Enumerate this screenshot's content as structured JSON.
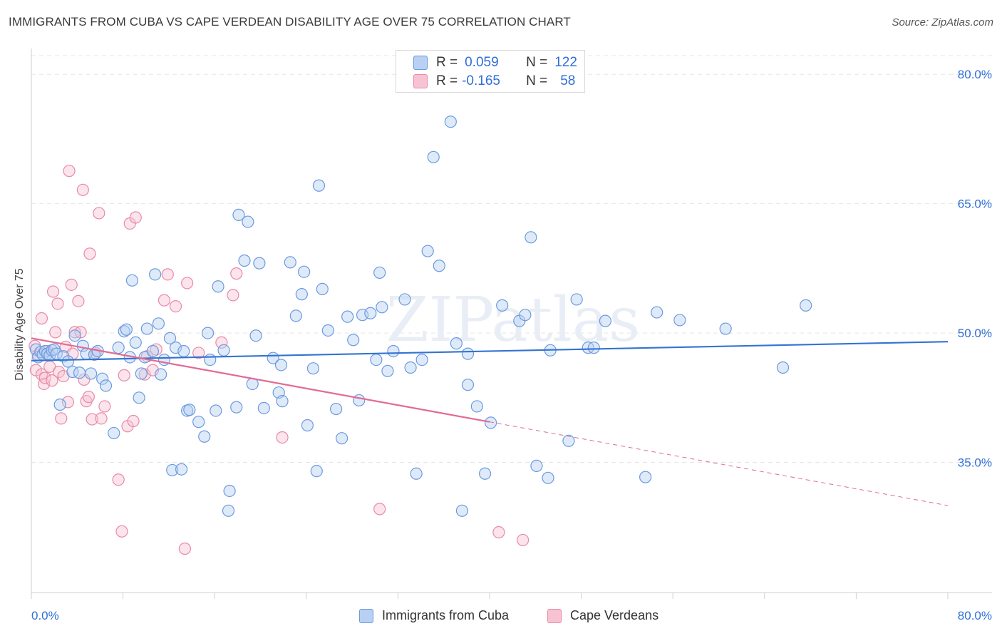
{
  "title": "IMMIGRANTS FROM CUBA VS CAPE VERDEAN DISABILITY AGE OVER 75 CORRELATION CHART",
  "source": "Source: ZipAtlas.com",
  "watermark": "ZIPatlas",
  "legend_top": {
    "rows": [
      {
        "r_label": "R =",
        "r_value": "0.059",
        "n_label": "N =",
        "n_value": "122"
      },
      {
        "r_label": "R =",
        "r_value": "-0.165",
        "n_label": "N =",
        "n_value": "58"
      }
    ]
  },
  "legend_bottom": [
    "Immigrants from Cuba",
    "Cape Verdeans"
  ],
  "colors": {
    "blue_fill": "#b8d0f2",
    "blue_stroke": "#6b9ae0",
    "blue_line": "#3374d1",
    "pink_fill": "#f7c3d3",
    "pink_stroke": "#e88aa8",
    "pink_line": "#e36a93",
    "axis_text": "#2f6fd6",
    "grid": "#e5e5e5"
  },
  "chart_data": {
    "type": "scatter",
    "title": "IMMIGRANTS FROM CUBA VS CAPE VERDEAN DISABILITY AGE OVER 75 CORRELATION CHART",
    "xlabel": "",
    "ylabel": "Disability Age Over 75",
    "xlim": [
      0,
      80
    ],
    "ylim": [
      20,
      82
    ],
    "x_tick_labels": [
      "0.0%",
      "80.0%"
    ],
    "y_ticks": [
      35,
      50,
      65,
      80
    ],
    "y_tick_labels": [
      "35.0%",
      "50.0%",
      "65.0%",
      "80.0%"
    ],
    "grid": true,
    "series": [
      {
        "name": "Immigrants from Cuba",
        "color": "#6b9ae0",
        "R": 0.059,
        "N": 122,
        "trend": {
          "x": [
            0,
            80
          ],
          "y": [
            46.8,
            49.0
          ]
        },
        "points": [
          [
            0.4,
            48.1
          ],
          [
            0.6,
            47.2
          ],
          [
            0.8,
            47.8
          ],
          [
            1.0,
            47.5
          ],
          [
            1.2,
            47.9
          ],
          [
            1.4,
            47.6
          ],
          [
            1.6,
            47.4
          ],
          [
            1.8,
            48.0
          ],
          [
            2.0,
            48.1
          ],
          [
            2.2,
            47.6
          ],
          [
            2.5,
            41.7
          ],
          [
            2.8,
            47.3
          ],
          [
            3.2,
            46.7
          ],
          [
            3.6,
            45.5
          ],
          [
            3.8,
            49.7
          ],
          [
            4.2,
            45.4
          ],
          [
            4.5,
            48.5
          ],
          [
            4.8,
            47.6
          ],
          [
            5.2,
            45.3
          ],
          [
            5.5,
            47.5
          ],
          [
            5.8,
            47.9
          ],
          [
            6.2,
            44.7
          ],
          [
            6.5,
            43.9
          ],
          [
            7.2,
            38.4
          ],
          [
            7.6,
            48.3
          ],
          [
            8.1,
            50.2
          ],
          [
            8.3,
            50.4
          ],
          [
            8.6,
            47.2
          ],
          [
            8.8,
            56.1
          ],
          [
            9.1,
            48.9
          ],
          [
            9.4,
            42.5
          ],
          [
            9.6,
            45.3
          ],
          [
            9.9,
            47.2
          ],
          [
            10.1,
            50.5
          ],
          [
            10.6,
            47.9
          ],
          [
            10.8,
            56.8
          ],
          [
            11.1,
            51.1
          ],
          [
            11.3,
            45.2
          ],
          [
            11.6,
            46.9
          ],
          [
            12.1,
            49.4
          ],
          [
            12.3,
            34.1
          ],
          [
            12.6,
            48.3
          ],
          [
            13.1,
            34.2
          ],
          [
            13.3,
            47.9
          ],
          [
            13.6,
            41.0
          ],
          [
            13.8,
            41.1
          ],
          [
            14.6,
            39.7
          ],
          [
            15.1,
            38.0
          ],
          [
            15.4,
            50.0
          ],
          [
            15.6,
            46.9
          ],
          [
            16.1,
            41.0
          ],
          [
            16.3,
            55.4
          ],
          [
            16.8,
            48.0
          ],
          [
            17.3,
            31.7
          ],
          [
            17.2,
            29.4
          ],
          [
            17.9,
            41.4
          ],
          [
            18.1,
            63.7
          ],
          [
            18.6,
            58.4
          ],
          [
            18.9,
            62.9
          ],
          [
            19.3,
            44.1
          ],
          [
            19.6,
            49.7
          ],
          [
            19.9,
            58.1
          ],
          [
            20.3,
            41.3
          ],
          [
            21.1,
            47.1
          ],
          [
            21.6,
            43.1
          ],
          [
            21.8,
            46.3
          ],
          [
            21.9,
            42.1
          ],
          [
            22.6,
            58.2
          ],
          [
            23.1,
            52.0
          ],
          [
            23.6,
            54.5
          ],
          [
            23.8,
            57.1
          ],
          [
            24.1,
            39.3
          ],
          [
            24.6,
            45.9
          ],
          [
            24.9,
            34.0
          ],
          [
            25.1,
            67.1
          ],
          [
            25.4,
            55.1
          ],
          [
            25.9,
            50.3
          ],
          [
            26.6,
            41.2
          ],
          [
            27.1,
            37.8
          ],
          [
            27.6,
            51.9
          ],
          [
            28.1,
            49.2
          ],
          [
            28.6,
            42.2
          ],
          [
            28.9,
            52.1
          ],
          [
            29.6,
            52.3
          ],
          [
            30.1,
            46.9
          ],
          [
            30.6,
            53.0
          ],
          [
            30.4,
            57.0
          ],
          [
            31.1,
            45.6
          ],
          [
            31.6,
            47.9
          ],
          [
            32.6,
            53.9
          ],
          [
            33.1,
            46.0
          ],
          [
            33.6,
            33.7
          ],
          [
            34.1,
            46.9
          ],
          [
            34.6,
            59.5
          ],
          [
            35.1,
            70.4
          ],
          [
            35.6,
            57.8
          ],
          [
            36.6,
            74.5
          ],
          [
            37.1,
            48.8
          ],
          [
            37.6,
            29.4
          ],
          [
            38.1,
            47.6
          ],
          [
            38.1,
            44.0
          ],
          [
            38.9,
            41.5
          ],
          [
            39.6,
            33.7
          ],
          [
            40.1,
            39.6
          ],
          [
            41.1,
            53.2
          ],
          [
            42.6,
            51.4
          ],
          [
            43.1,
            52.1
          ],
          [
            43.6,
            61.1
          ],
          [
            44.1,
            34.6
          ],
          [
            45.1,
            33.2
          ],
          [
            45.3,
            48.0
          ],
          [
            46.9,
            37.5
          ],
          [
            47.6,
            53.9
          ],
          [
            48.6,
            48.3
          ],
          [
            49.1,
            48.3
          ],
          [
            50.1,
            51.4
          ],
          [
            53.6,
            33.3
          ],
          [
            54.6,
            52.4
          ],
          [
            56.6,
            51.5
          ],
          [
            60.6,
            50.5
          ],
          [
            65.6,
            46.0
          ],
          [
            67.6,
            53.2
          ]
        ]
      },
      {
        "name": "Cape Verdeans",
        "color": "#e88aa8",
        "R": -0.165,
        "N": 58,
        "trend": {
          "x": [
            0,
            40
          ],
          "y": [
            49.4,
            39.7
          ]
        },
        "trend_dashed": {
          "x": [
            40,
            80
          ],
          "y": [
            39.7,
            30.0
          ]
        },
        "points": [
          [
            0.3,
            48.5
          ],
          [
            0.4,
            45.7
          ],
          [
            0.6,
            47.5
          ],
          [
            0.9,
            45.2
          ],
          [
            0.9,
            51.7
          ],
          [
            1.1,
            44.1
          ],
          [
            1.2,
            44.8
          ],
          [
            1.4,
            47.9
          ],
          [
            1.6,
            46.1
          ],
          [
            1.8,
            44.5
          ],
          [
            1.9,
            54.8
          ],
          [
            2.1,
            50.1
          ],
          [
            2.3,
            53.4
          ],
          [
            2.4,
            45.5
          ],
          [
            2.6,
            40.1
          ],
          [
            2.8,
            45.0
          ],
          [
            3.0,
            48.4
          ],
          [
            3.2,
            42.0
          ],
          [
            3.3,
            68.8
          ],
          [
            3.5,
            55.6
          ],
          [
            3.6,
            47.6
          ],
          [
            3.8,
            50.1
          ],
          [
            4.1,
            53.7
          ],
          [
            4.3,
            50.1
          ],
          [
            4.5,
            66.6
          ],
          [
            4.6,
            44.6
          ],
          [
            4.8,
            42.1
          ],
          [
            5.0,
            42.6
          ],
          [
            5.1,
            59.2
          ],
          [
            5.3,
            40.0
          ],
          [
            5.6,
            47.7
          ],
          [
            5.9,
            63.9
          ],
          [
            6.1,
            40.1
          ],
          [
            6.4,
            41.5
          ],
          [
            7.6,
            33.0
          ],
          [
            7.9,
            27.0
          ],
          [
            8.1,
            45.1
          ],
          [
            8.4,
            39.2
          ],
          [
            8.6,
            62.7
          ],
          [
            8.9,
            39.8
          ],
          [
            9.1,
            63.4
          ],
          [
            9.9,
            45.2
          ],
          [
            10.1,
            47.3
          ],
          [
            10.6,
            45.7
          ],
          [
            10.9,
            48.1
          ],
          [
            11.6,
            53.8
          ],
          [
            11.9,
            56.8
          ],
          [
            12.6,
            53.1
          ],
          [
            13.4,
            25.0
          ],
          [
            13.6,
            55.8
          ],
          [
            14.6,
            47.7
          ],
          [
            16.6,
            48.9
          ],
          [
            17.6,
            54.4
          ],
          [
            17.9,
            56.9
          ],
          [
            21.9,
            37.9
          ],
          [
            30.4,
            29.6
          ],
          [
            40.8,
            26.9
          ],
          [
            42.9,
            26.0
          ]
        ]
      }
    ]
  }
}
